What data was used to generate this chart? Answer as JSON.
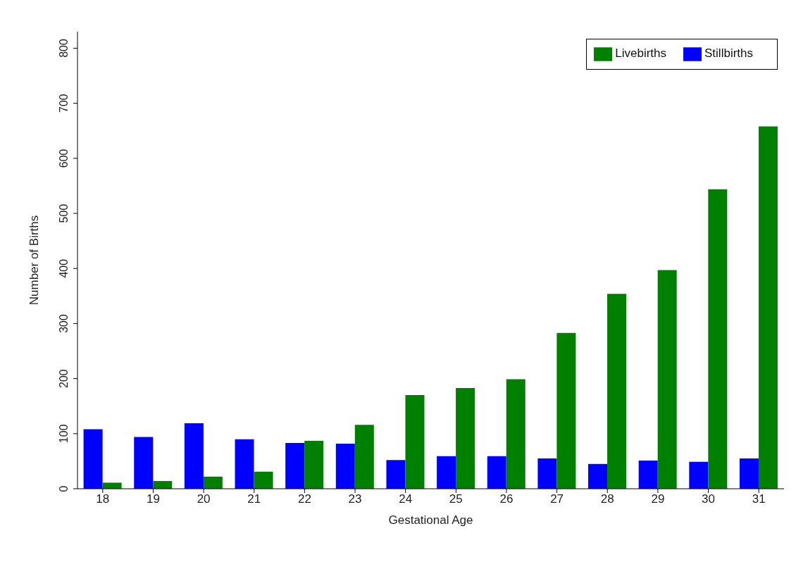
{
  "chart_data": {
    "type": "bar",
    "xlabel": "Gestational Age",
    "ylabel": "Number of Births",
    "categories": [
      "18",
      "19",
      "20",
      "21",
      "22",
      "23",
      "24",
      "25",
      "26",
      "27",
      "28",
      "29",
      "30",
      "31"
    ],
    "series": [
      {
        "name": "Stillbirths",
        "color": "#0000ff",
        "values": [
          108,
          94,
          119,
          90,
          83,
          82,
          52,
          59,
          59,
          55,
          45,
          51,
          49,
          55
        ]
      },
      {
        "name": "Livebirths",
        "color": "#008000",
        "values": [
          11,
          14,
          22,
          31,
          87,
          116,
          170,
          183,
          199,
          283,
          354,
          397,
          544,
          658
        ]
      }
    ],
    "ylim": [
      0,
      830
    ],
    "yticks": [
      0,
      100,
      200,
      300,
      400,
      500,
      600,
      700,
      800
    ],
    "grid": false,
    "legend": "top right"
  }
}
